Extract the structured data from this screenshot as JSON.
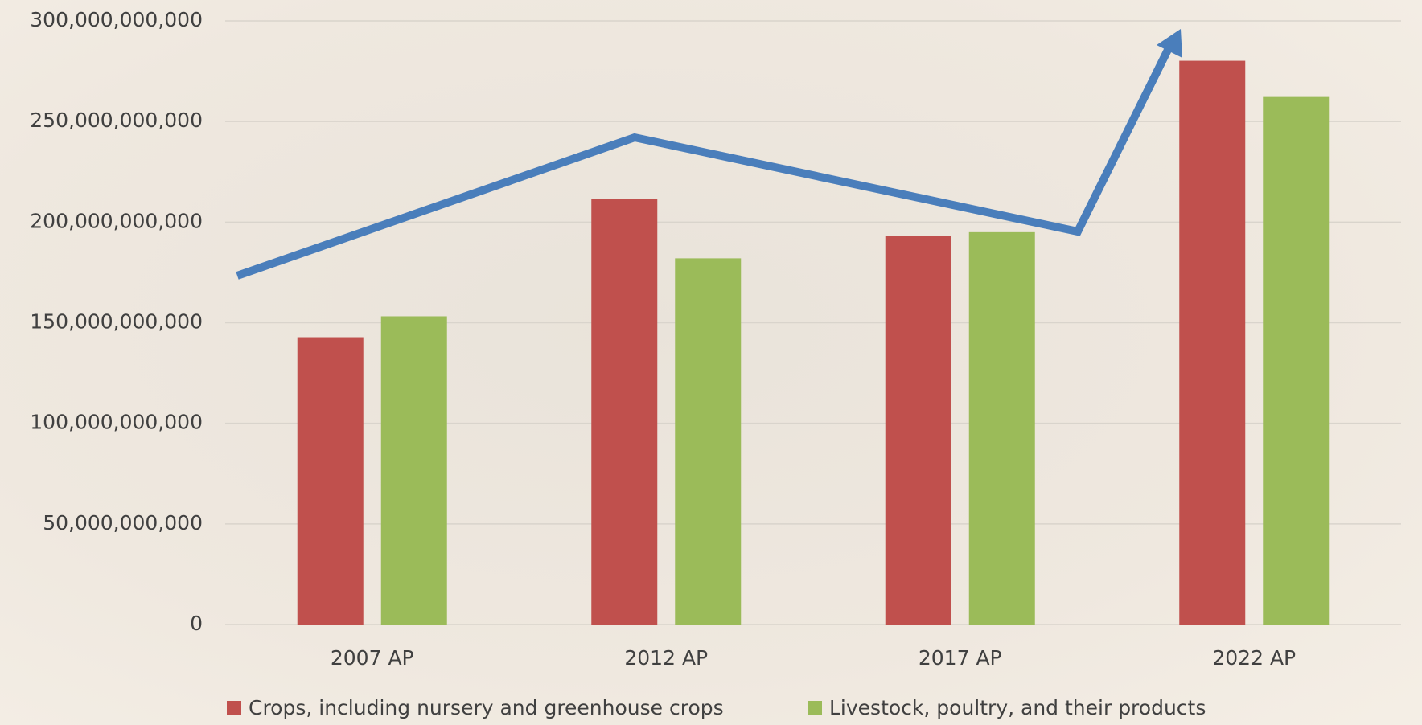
{
  "chart_data": {
    "type": "bar",
    "categories": [
      "2007 AP",
      "2012 AP",
      "2017 AP",
      "2022 AP"
    ],
    "series": [
      {
        "name": "Crops, including nursery and greenhouse crops",
        "color": "#c0504d",
        "values": [
          142800000000,
          211700000000,
          193200000000,
          280200000000
        ]
      },
      {
        "name": "Livestock, poultry, and their products",
        "color": "#9bbb59",
        "values": [
          153200000000,
          182000000000,
          195000000000,
          262200000000
        ]
      }
    ],
    "ylim": [
      0,
      300000000000
    ],
    "yticks": [
      0,
      {
        "value": 50000000000,
        "label": "50,000,000,000"
      },
      {
        "value": 100000000000,
        "label": "100,000,000,000"
      },
      {
        "value": 150000000000,
        "label": "150,000,000,000"
      },
      {
        "value": 200000000000,
        "label": "200,000,000,000"
      },
      {
        "value": 250000000000,
        "label": "250,000,000,000"
      },
      {
        "value": 300000000000,
        "label": "300,000,000,000"
      }
    ],
    "grid": true,
    "legend": "bottom"
  }
}
